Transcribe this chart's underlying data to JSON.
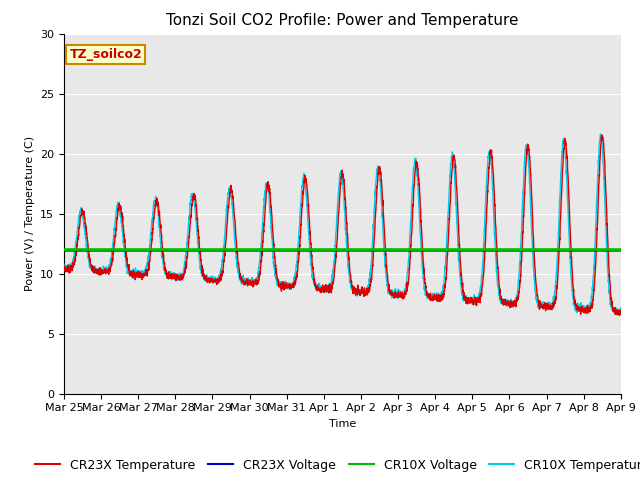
{
  "title": "Tonzi Soil CO2 Profile: Power and Temperature",
  "xlabel": "Time",
  "ylabel": "Power (V) / Temperature (C)",
  "ylim": [
    0,
    30
  ],
  "xlim": [
    0,
    15
  ],
  "x_tick_labels": [
    "Mar 25",
    "Mar 26",
    "Mar 27",
    "Mar 28",
    "Mar 29",
    "Mar 30",
    "Mar 31",
    "Apr 1",
    "Apr 2",
    "Apr 3",
    "Apr 4",
    "Apr 5",
    "Apr 6",
    "Apr 7",
    "Apr 8",
    "Apr 9"
  ],
  "annotation_text": "TZ_soilco2",
  "annotation_color": "#cc0000",
  "annotation_bg": "#ffffcc",
  "annotation_border": "#cc8800",
  "cr23x_temp_color": "#dd0000",
  "cr23x_volt_color": "#0000cc",
  "cr10x_volt_color": "#00bb00",
  "cr10x_temp_color": "#00ccee",
  "cr23x_volt_value": 11.9,
  "cr10x_volt_value": 12.0,
  "axes_bg_color": "#e8e8e8",
  "grid_color": "#ffffff",
  "title_fontsize": 11,
  "axis_fontsize": 8,
  "legend_fontsize": 9,
  "tick_label_fontsize": 8
}
